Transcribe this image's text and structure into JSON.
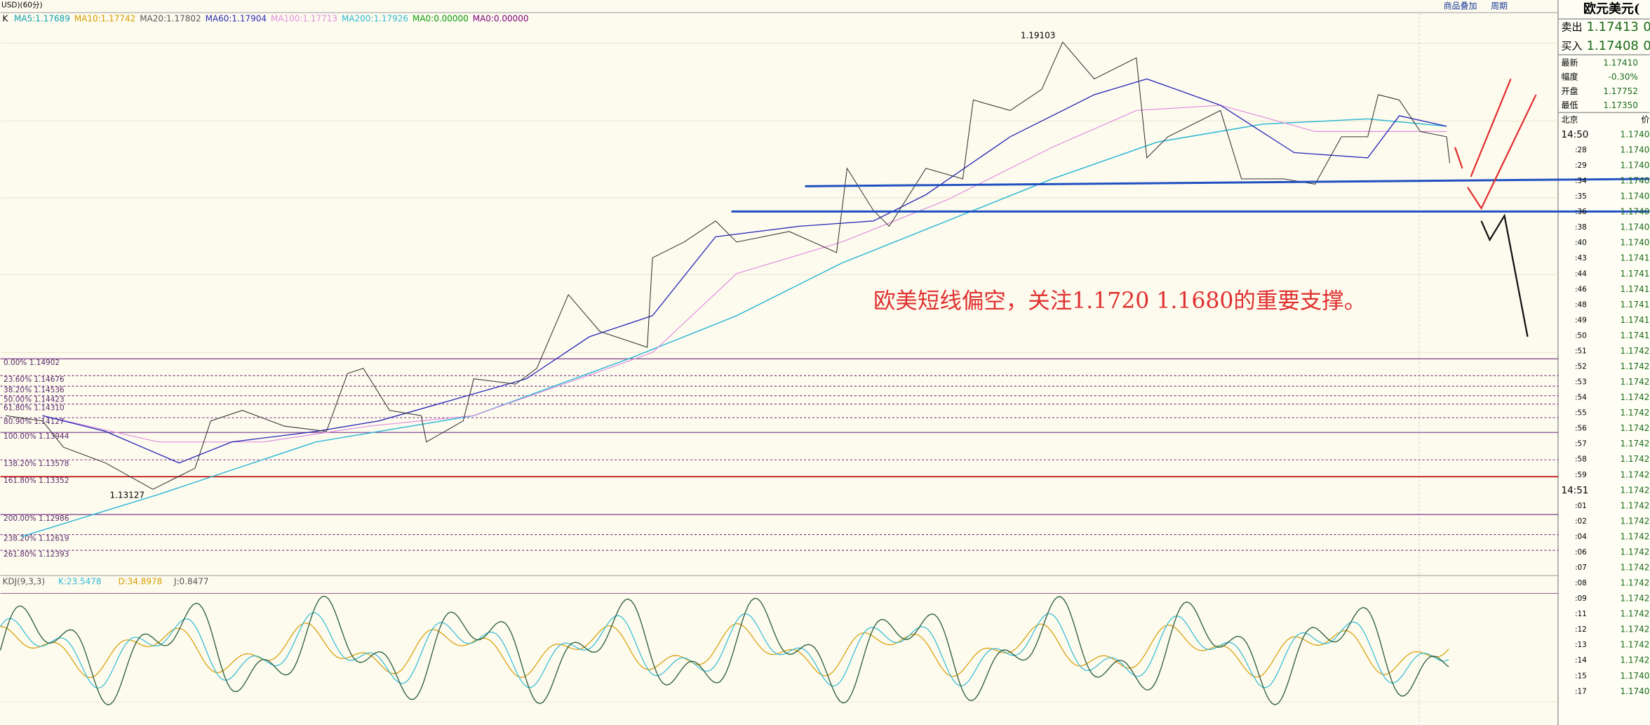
{
  "header": {
    "symbol": "USD)(60分)",
    "k": "K",
    "ma": [
      {
        "label": "MA5:1.17689",
        "color": "#0a9fb0"
      },
      {
        "label": "MA10:1.17742",
        "color": "#d79b00"
      },
      {
        "label": "MA20:1.17802",
        "color": "#555555"
      },
      {
        "label": "MA60:1.17904",
        "color": "#2b2bb8"
      },
      {
        "label": "MA100:1.17713",
        "color": "#e08fe0"
      },
      {
        "label": "MA200:1.17926",
        "color": "#2fb9d6"
      },
      {
        "label": "MA0:0.00000",
        "color": "#0a9a0a"
      },
      {
        "label": "MA0:0.00000",
        "color": "#800080"
      }
    ],
    "links": [
      "商品叠加",
      "周期"
    ]
  },
  "chart": {
    "high_label": "1.19103",
    "low_label": "1.13127",
    "annotation": "欧美短线偏空，关注1.1720  1.1680的重要支撑。",
    "fib": [
      "0.00% 1.14902",
      "23.60% 1.14676",
      "38.20% 1.14536",
      "50.00% 1.14423",
      "61.80% 1.14310",
      "80.90% 1.14127",
      "100.00% 1.13944",
      "138.20% 1.13578",
      "161.80% 1.13352",
      "200.00% 1.12986",
      "238.20% 1.12619",
      "261.80% 1.12393"
    ]
  },
  "kdj": {
    "name": "KDJ(9,3,3)",
    "k": "K:23.5478",
    "d": "D:34.8978",
    "j": "J:0.8477"
  },
  "quote": {
    "title": "欧元美元(",
    "sell_label": "卖出",
    "sell": "1.17413",
    "sell_tail": "0",
    "buy_label": "买入",
    "buy": "1.17408",
    "buy_tail": "0",
    "rows": [
      [
        "最新",
        "1.17410"
      ],
      [
        "幅度",
        "-0.30%"
      ],
      [
        "开盘",
        "1.17752"
      ],
      [
        "最低",
        "1.17350"
      ]
    ],
    "time_header": "北京",
    "price_header": "价",
    "ticks": [
      [
        "14:50",
        "1.1740"
      ],
      [
        ":28",
        "1.1740"
      ],
      [
        ":29",
        "1.1740"
      ],
      [
        ":34",
        "1.1740"
      ],
      [
        ":35",
        "1.1740"
      ],
      [
        ":36",
        "1.1740"
      ],
      [
        ":38",
        "1.1740"
      ],
      [
        ":40",
        "1.1740"
      ],
      [
        ":43",
        "1.1741"
      ],
      [
        ":44",
        "1.1741"
      ],
      [
        ":46",
        "1.1741"
      ],
      [
        ":48",
        "1.1741"
      ],
      [
        ":49",
        "1.1741"
      ],
      [
        ":50",
        "1.1741"
      ],
      [
        ":51",
        "1.1742"
      ],
      [
        ":52",
        "1.1742"
      ],
      [
        ":53",
        "1.1742"
      ],
      [
        ":54",
        "1.1742"
      ],
      [
        ":55",
        "1.1742"
      ],
      [
        ":56",
        "1.1742"
      ],
      [
        ":57",
        "1.1742"
      ],
      [
        ":58",
        "1.1742"
      ],
      [
        ":59",
        "1.1742"
      ],
      [
        "14:51",
        "1.1742"
      ],
      [
        ":01",
        "1.1742"
      ],
      [
        ":02",
        "1.1742"
      ],
      [
        ":04",
        "1.1742"
      ],
      [
        ":06",
        "1.1742"
      ],
      [
        ":07",
        "1.1742"
      ],
      [
        ":08",
        "1.1742"
      ],
      [
        ":09",
        "1.1742"
      ],
      [
        ":11",
        "1.1742"
      ],
      [
        ":12",
        "1.1742"
      ],
      [
        ":13",
        "1.1742"
      ],
      [
        ":14",
        "1.1742"
      ],
      [
        ":15",
        "1.1740"
      ],
      [
        ":17",
        "1.1740"
      ]
    ]
  }
}
